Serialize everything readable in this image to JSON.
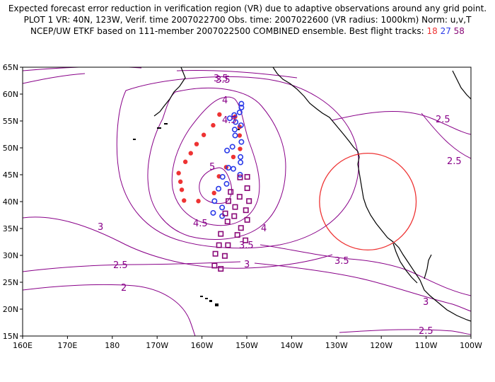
{
  "header": {
    "line1": "Expected forecast error reduction in verification region (VR) due to adaptive observations around any grid point.",
    "line2": "PLOT 1 VR: 40N, 123W, Verif. time 2007022700 Obs. time: 2007022600 (VR radius: 1000km) Norm: u,v,T",
    "line3_prefix": "NCEP/UW ETKF based on 111-member 2007022500 COMBINED ensemble.  Best flight tracks:",
    "track_red": "18",
    "track_blue": "27",
    "track_purple": "58"
  },
  "map": {
    "lon_range": [
      160,
      260
    ],
    "lat_range": [
      15,
      65
    ],
    "lat_ticks": [
      "15N",
      "20N",
      "25N",
      "30N",
      "35N",
      "40N",
      "45N",
      "50N",
      "55N",
      "60N",
      "65N"
    ],
    "lon_ticks": [
      "160E",
      "170E",
      "180",
      "170W",
      "160W",
      "150W",
      "140W",
      "130W",
      "120W",
      "110W",
      "100W"
    ],
    "contour_color": "#880088",
    "coast_color": "#000000",
    "contour_labels": [
      "3.5",
      "4",
      "4.5",
      "5",
      "4.5",
      "4",
      "3.5",
      "3",
      "2.5",
      "2",
      "3",
      "3.5",
      "3.5",
      "2.5",
      "2.5",
      "3",
      "2.5"
    ],
    "verification_region": {
      "center_lat": 40,
      "center_lon": 237,
      "radius_km": 1000,
      "color": "#ee3333"
    }
  },
  "tracks": {
    "red": {
      "color": "#ee3333",
      "points": [
        [
          -156.1,
          56.2
        ],
        [
          -157.5,
          54.2
        ],
        [
          -159.6,
          52.4
        ],
        [
          -161.2,
          50.7
        ],
        [
          -162.5,
          49.0
        ],
        [
          -163.7,
          47.4
        ],
        [
          -165.2,
          45.3
        ],
        [
          -164.8,
          43.7
        ],
        [
          -164.5,
          42.2
        ],
        [
          -164,
          40.2
        ],
        [
          -160.8,
          40.1
        ],
        [
          -157.3,
          41.6
        ],
        [
          -156.2,
          44.7
        ],
        [
          -154.6,
          46.4
        ],
        [
          -153,
          48.3
        ],
        [
          -151.5,
          49.8
        ],
        [
          -151.6,
          52.3
        ],
        [
          -151.6,
          53.9
        ],
        [
          -152.6,
          55.8
        ]
      ]
    },
    "blue": {
      "color": "#2a3ae8",
      "points": [
        [
          -151.2,
          58.2
        ],
        [
          -151.2,
          57.5
        ],
        [
          -151.6,
          56.6
        ],
        [
          -152.8,
          56.1
        ],
        [
          -153.8,
          55.5
        ],
        [
          -152.5,
          54.8
        ],
        [
          -151.3,
          54.2
        ],
        [
          -152.7,
          53.4
        ],
        [
          -152.6,
          52.3
        ],
        [
          -151.2,
          51.1
        ],
        [
          -153.2,
          50.2
        ],
        [
          -154.4,
          49.5
        ],
        [
          -151.4,
          48.3
        ],
        [
          -151.4,
          47.3
        ],
        [
          -154.1,
          46.3
        ],
        [
          -153.0,
          46.1
        ],
        [
          -151.5,
          45.0
        ],
        [
          -155.4,
          44.6
        ],
        [
          -154.5,
          43.3
        ],
        [
          -156.3,
          42.4
        ],
        [
          -157.2,
          40.1
        ],
        [
          -155.5,
          38.9
        ],
        [
          -157.5,
          37.9
        ],
        [
          -155.5,
          37.3
        ]
      ]
    },
    "purple": {
      "color": "#8a0a78",
      "points": [
        [
          -149.9,
          44.6
        ],
        [
          -151.5,
          44.5
        ],
        [
          -149.9,
          42.5
        ],
        [
          -153.6,
          41.8
        ],
        [
          -151.6,
          40.9
        ],
        [
          -149.5,
          40.1
        ],
        [
          -154.1,
          40.1
        ],
        [
          -152.6,
          39.0
        ],
        [
          -150.2,
          38.4
        ],
        [
          -154.8,
          37.8
        ],
        [
          -152.8,
          37.3
        ],
        [
          -149.9,
          36.6
        ],
        [
          -154.3,
          36.3
        ],
        [
          -151.3,
          35.1
        ],
        [
          -155.8,
          34.0
        ],
        [
          -152.1,
          33.8
        ],
        [
          -150.3,
          32.8
        ],
        [
          -156.2,
          31.9
        ],
        [
          -154.2,
          31.9
        ],
        [
          -157.0,
          30.3
        ],
        [
          -154.9,
          29.9
        ],
        [
          -157.2,
          28.1
        ],
        [
          -155.8,
          27.5
        ]
      ]
    }
  }
}
